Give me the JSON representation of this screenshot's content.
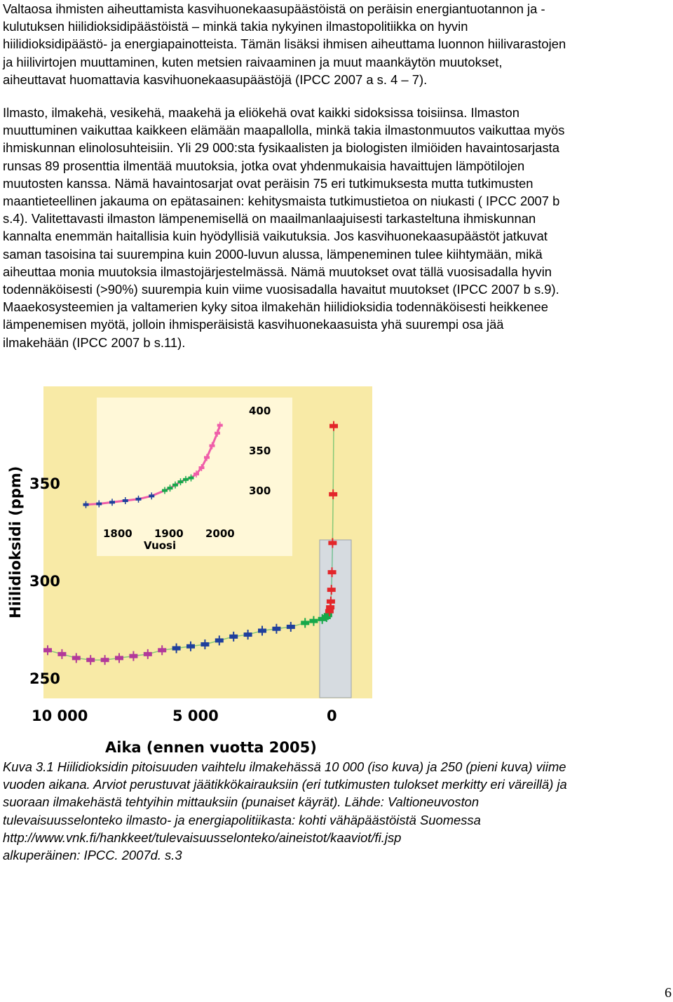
{
  "paragraphs": [
    [
      "Valtaosa ihmisten aiheuttamista kasvihuonekaasupäästöistä on peräisin energiantuotannon ja -",
      "kulutuksen hiilidioksidipäästöistä – minkä takia nykyinen ilmastopolitiikka on hyvin",
      "hiilidioksidipäästö- ja energiapainotteista. Tämän lisäksi ihmisen aiheuttama luonnon hiilivarastojen",
      "ja hiilivirtojen muuttaminen, kuten metsien raivaaminen ja muut maankäytön muutokset,",
      "aiheuttavat huomattavia kasvihuonekaasupäästöjä (IPCC 2007 a s. 4 – 7)."
    ],
    [
      "Ilmasto, ilmakehä, vesikehä, maakehä ja eliökehä ovat kaikki sidoksissa toisiinsa. Ilmaston",
      "muuttuminen vaikuttaa kaikkeen elämään maapallolla, minkä takia ilmastonmuutos vaikuttaa myös",
      "ihmiskunnan elinolosuhteisiin. Yli 29 000:sta fysikaalisten ja biologisten ilmiöiden havaintosarjasta",
      "runsas 89 prosenttia ilmentää muutoksia, jotka ovat yhdenmukaisia havaittujen lämpötilojen",
      "muutosten kanssa. Nämä havaintosarjat ovat peräisin 75 eri tutkimuksesta mutta tutkimusten",
      "maantieteellinen jakauma on epätasainen: kehitysmaista tutkimustietoa on niukasti ( IPCC 2007 b",
      "s.4). Valitettavasti ilmaston lämpenemisellä on maailmanlaajuisesti tarkasteltuna ihmiskunnan",
      "kannalta enemmän haitallisia kuin hyödyllisiä vaikutuksia. Jos kasvihuonekaasupäästöt jatkuvat",
      "saman tasoisina tai suurempina kuin 2000-luvun alussa, lämpeneminen tulee kiihtymään, mikä",
      "aiheuttaa monia muutoksia ilmastojärjestelmässä. Nämä muutokset ovat tällä vuosisadalla hyvin",
      "todennäköisesti (>90%) suurempia kuin viime vuosisadalla havaitut muutokset (IPCC 2007 b s.9).",
      "Maaekosysteemien ja valtamerien kyky sitoa ilmakehän hiilidioksidia todennäköisesti heikkenee",
      "lämpenemisen myötä, jolloin ihmisperäisistä kasvihuonekaasuista yhä suurempi osa jää",
      "ilmakehään (IPCC 2007 b s.11)."
    ]
  ],
  "figure": {
    "main_ylabel": "Hiilidioksidi (ppm)",
    "main_yticks": [
      "350",
      "300",
      "250"
    ],
    "main_xticks": [
      "10 000",
      "5 000",
      "0"
    ],
    "main_xlabel": "Aika (ennen vuotta 2005)",
    "inset_yticks": [
      "400",
      "350",
      "300"
    ],
    "inset_xticks": [
      "1800",
      "1900",
      "2000"
    ],
    "inset_xlabel": "Vuosi",
    "colors": {
      "panel_bg": "#f8eaa6",
      "inset_bg": "#d6dbe0",
      "icecore_magenta": "#b2399a",
      "icecore_green": "#16a84a",
      "icecore_blue": "#1f3f9c",
      "icecore_cyan": "#27b8e6",
      "atmospheric_red": "#e3262a",
      "atmospheric_pink": "#ef5ea9"
    }
  },
  "chart_data": [
    {
      "type": "line",
      "title": "",
      "xlabel": "Aika (ennen vuotta 2005)",
      "ylabel": "Hiilidioksidi (ppm)",
      "xlim": [
        10000,
        0
      ],
      "ylim": [
        245,
        400
      ],
      "x_ticks": [
        10000,
        5000,
        0
      ],
      "y_ticks": [
        250,
        300,
        350
      ],
      "series": [
        {
          "x": [
            10000,
            9500,
            9000,
            8500,
            8000,
            7500,
            7000,
            6500,
            6000,
            5500,
            5000,
            4500,
            4000,
            3500,
            3000,
            2500,
            2000,
            1500,
            1000,
            700,
            400,
            250,
            200,
            150,
            120,
            100,
            80,
            60,
            40,
            20,
            0
          ],
          "y": [
            265,
            263,
            261,
            260,
            260,
            261,
            262,
            263,
            265,
            266,
            267,
            268,
            270,
            272,
            273,
            275,
            276,
            277,
            279,
            280,
            281,
            282,
            283,
            285,
            287,
            290,
            296,
            305,
            320,
            345,
            380
          ]
        }
      ]
    },
    {
      "type": "line",
      "title": "",
      "xlabel": "Vuosi",
      "ylabel": "",
      "xlim": [
        1750,
        2005
      ],
      "ylim": [
        270,
        400
      ],
      "x_ticks": [
        1800,
        1900,
        2000
      ],
      "y_ticks": [
        300,
        350,
        400
      ],
      "series": [
        {
          "x": [
            1750,
            1775,
            1800,
            1825,
            1850,
            1875,
            1900,
            1910,
            1920,
            1930,
            1940,
            1950,
            1960,
            1970,
            1980,
            1990,
            2000,
            2005
          ],
          "y": [
            278,
            279,
            281,
            283,
            285,
            289,
            296,
            299,
            303,
            307,
            310,
            312,
            317,
            325,
            338,
            353,
            369,
            379
          ]
        }
      ]
    }
  ],
  "caption_lines": [
    "Kuva 3.1 Hiilidioksidin pitoisuuden vaihtelu ilmakehässä 10 000 (iso kuva) ja 250 (pieni kuva) viime",
    "vuoden aikana. Arviot perustuvat jäätikkökairauksiin (eri tutkimusten tulokset merkitty eri väreillä) ja",
    "suoraan ilmakehästä tehtyihin mittauksiin (punaiset käyrät). Lähde: Valtioneuvoston",
    "tulevaisuusselonteko ilmasto- ja energiapolitiikasta: kohti vähäpäästöistä Suomessa",
    "http://www.vnk.fi/hankkeet/tulevaisuusselonteko/aineistot/kaaviot/fi.jsp",
    "alkuperäinen: IPCC. 2007d. s.3"
  ],
  "page_number": "6"
}
